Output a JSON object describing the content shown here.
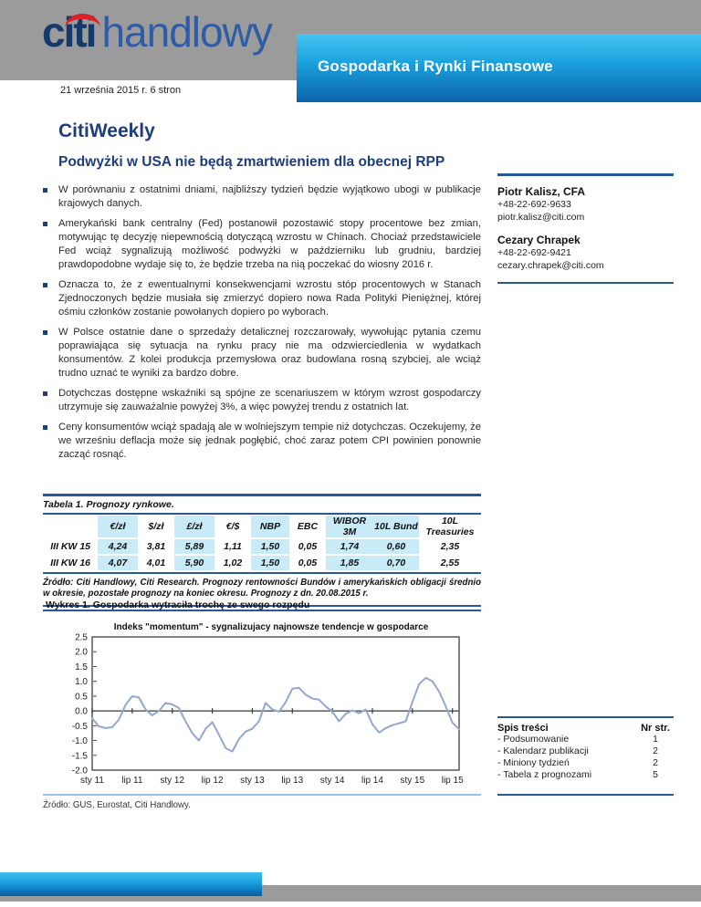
{
  "header": {
    "logo_citi": "citi",
    "logo_handlowy": "handlowy",
    "banner": "Gospodarka i Rynki Finansowe",
    "date_line": "21 września 2015 r. 6 stron"
  },
  "title": "CitiWeekly",
  "subtitle": "Podwyżki w USA nie będą zmartwieniem dla obecnej RPP",
  "bullets": [
    "W porównaniu z ostatnimi dniami, najbliższy tydzień będzie wyjątkowo ubogi w publikacje krajowych danych.",
    "Amerykański bank centralny (Fed) postanowił pozostawić stopy procentowe bez zmian, motywując tę decyzję niepewnością dotyczącą wzrostu w Chinach. Chociaż przedstawiciele Fed wciąż sygnalizują możliwość podwyżki w październiku lub grudniu, bardziej prawdopodobne wydaje się to, że będzie trzeba na nią poczekać do wiosny 2016 r.",
    "Oznacza to, że z ewentualnymi konsekwencjami wzrostu stóp procentowych w Stanach Zjednoczonych będzie musiała się zmierzyć dopiero nowa Rada Polityki Pieniężnej, której ośmiu członków zostanie powołanych dopiero po wyborach.",
    "W Polsce ostatnie dane o sprzedaży detalicznej rozczarowały, wywołując pytania czemu poprawiająca się sytuacja na rynku pracy nie ma odzwierciedlenia w wydatkach konsumentów. Z kolei produkcja przemysłowa oraz budowlana rosną szybciej, ale wciąż trudno uznać te wyniki za bardzo dobre.",
    "Dotychczas dostępne wskaźniki są spójne ze scenariuszem w którym wzrost gospodarczy utrzymuje się zauważalnie powyżej 3%, a więc powyżej trendu z ostatnich lat.",
    "Ceny konsumentów wciąż spadają ale w wolniejszym tempie niż dotychczas. Oczekujemy, że we wrześniu deflacja może się jednak pogłębić, choć zaraz potem CPI powinien ponownie zacząć rosnąć."
  ],
  "contacts": [
    {
      "name": "Piotr Kalisz, CFA",
      "phone": "+48-22-692-9633",
      "email": "piotr.kalisz@citi.com"
    },
    {
      "name": "Cezary Chrapek",
      "phone": "+48-22-692-9421",
      "email": "cezary.chrapek@citi.com"
    }
  ],
  "table": {
    "caption": "Tabela 1. Prognozy rynkowe.",
    "columns": [
      "",
      "€/zł",
      "$/zł",
      "£/zł",
      "€/$",
      "NBP",
      "EBC",
      "WIBOR 3M",
      "10L Bund",
      "10L Treasuries"
    ],
    "highlight_value_indexes": [
      0,
      2,
      4,
      6,
      7
    ],
    "rows": [
      {
        "label": "III KW 15",
        "values": [
          "4,24",
          "3,81",
          "5,89",
          "1,11",
          "1,50",
          "0,05",
          "1,74",
          "0,60",
          "2,35"
        ]
      },
      {
        "label": "III KW 16",
        "values": [
          "4,07",
          "4,01",
          "5,90",
          "1,02",
          "1,50",
          "0,05",
          "1,85",
          "0,70",
          "2,55"
        ]
      }
    ],
    "source": "Źródło: Citi Handlowy, Citi Research. Prognozy rentowności Bundów i amerykańskich obligacji średnio w okresie, pozostałe prognozy na koniec okresu. Prognozy z dn. 20.08.2015 r."
  },
  "chart": {
    "caption": "Wykres 1. Gospodarka wytraciła trochę ze swego rozpędu",
    "source": "Źródło: GUS, Eurostat, Citi Handlowy."
  },
  "chart_data": {
    "type": "line",
    "title": "Indeks \"momentum\" -  sygnalizujacy  najnowsze tendencje w gospodarce",
    "x_start": "2011-01",
    "x_end": "2015-08",
    "x_tick_labels": [
      "sty 11",
      "lip 11",
      "sty 12",
      "lip 12",
      "sty 13",
      "lip 13",
      "sty 14",
      "lip 14",
      "sty 15",
      "lip 15"
    ],
    "x_tick_interval_months": 6,
    "ylim": [
      -2.0,
      2.5
    ],
    "y_ticks": [
      2.5,
      2.0,
      1.5,
      1.0,
      0.5,
      0.0,
      -0.5,
      -1.0,
      -1.5,
      -2.0
    ],
    "grid": false,
    "legend": "none",
    "series": [
      {
        "name": "Indeks momentum",
        "color": "#92a8d1",
        "values": [
          -0.25,
          -0.52,
          -0.58,
          -0.55,
          -0.3,
          0.2,
          0.5,
          0.45,
          0.05,
          -0.15,
          0.0,
          0.27,
          0.22,
          0.1,
          -0.35,
          -0.75,
          -1.0,
          -0.6,
          -0.38,
          -0.8,
          -1.25,
          -1.37,
          -0.95,
          -0.7,
          -0.6,
          -0.35,
          0.27,
          0.05,
          -0.03,
          0.3,
          0.75,
          0.78,
          0.55,
          0.42,
          0.38,
          0.15,
          -0.02,
          -0.35,
          -0.1,
          0.02,
          -0.08,
          0.05,
          -0.45,
          -0.73,
          -0.58,
          -0.48,
          -0.42,
          -0.35,
          0.3,
          0.9,
          1.12,
          1.0,
          0.65,
          0.15,
          -0.4,
          -0.62
        ]
      }
    ]
  },
  "toc": {
    "title": "Spis treści",
    "col_header": "Nr str.",
    "items": [
      {
        "label": "- Podsumowanie",
        "page": "1"
      },
      {
        "label": "- Kalendarz publikacji",
        "page": "2"
      },
      {
        "label": "- Miniony tydzień",
        "page": "2"
      },
      {
        "label": "- Tabela z prognozami",
        "page": "5"
      }
    ]
  },
  "colors": {
    "header_gray": "#9b9b9b",
    "banner_blue_top": "#48c3f1",
    "banner_blue_bottom": "#0c62aa",
    "navy_rule": "#2a5798",
    "title_navy": "#1e3d7c",
    "logo_citi_blue": "#16386b",
    "logo_handlowy_blue": "#2e5ca6",
    "logo_arc_red": "#dd1f26",
    "table_highlight": "#c9eaf7",
    "chart_line": "#92a8d1"
  }
}
